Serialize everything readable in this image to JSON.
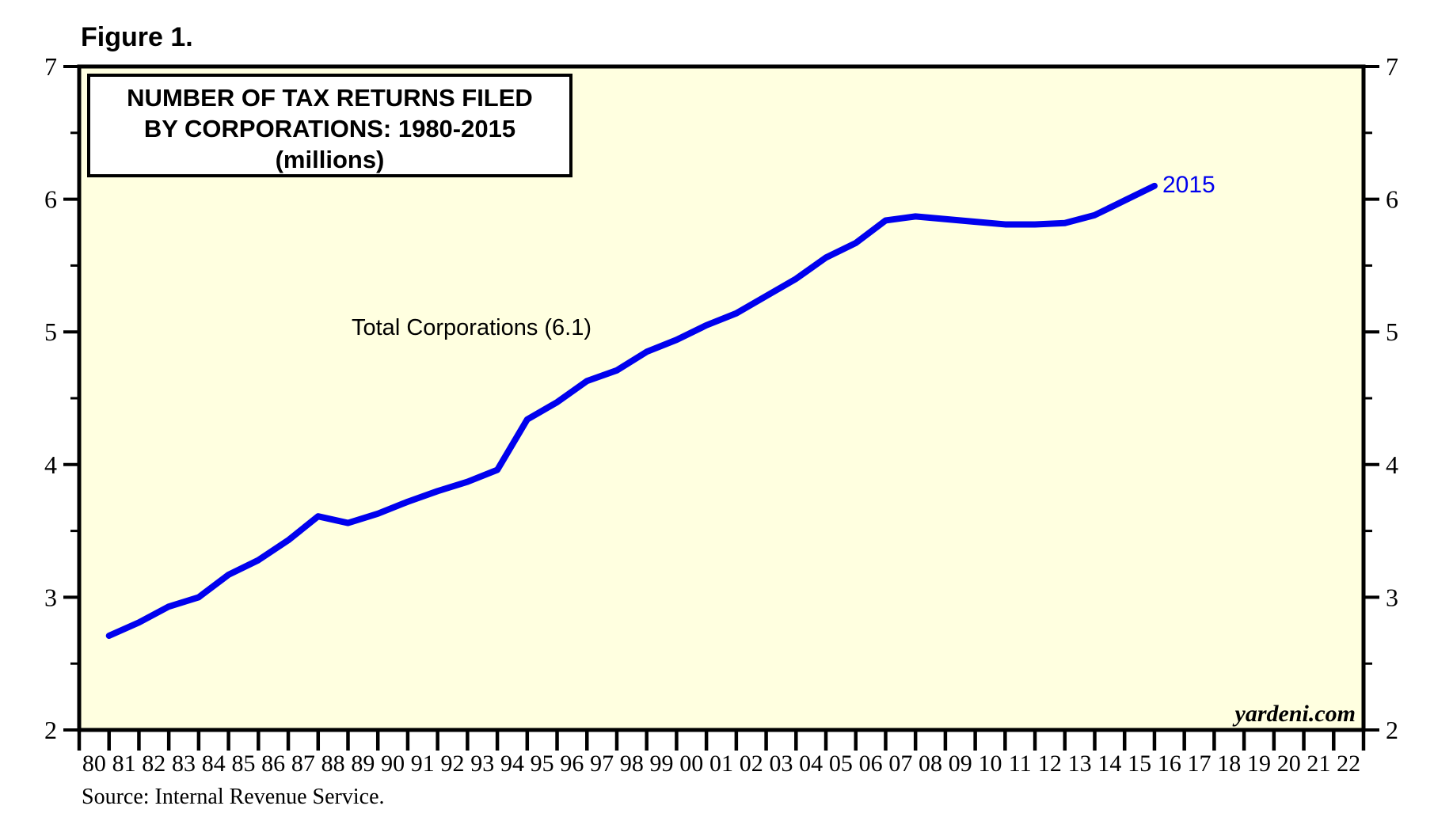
{
  "figure_label": "Figure 1.",
  "source_note": "Source: Internal Revenue Service.",
  "watermark": "yardeni.com",
  "chart_data": {
    "type": "line",
    "title": "NUMBER OF TAX RETURNS FILED BY CORPORATIONS: 1980-2015 (millions)",
    "title_box_lines": [
      "NUMBER OF TAX RETURNS FILED",
      "BY CORPORATIONS: 1980-2015",
      "(millions)"
    ],
    "series_annotation": "Total Corporations (6.1)",
    "end_label": "2015",
    "legend_position": "none",
    "grid": false,
    "ylim": [
      2,
      7
    ],
    "y_major_ticks": [
      2,
      3,
      4,
      5,
      6,
      7
    ],
    "y_minor_ticks": [
      2.5,
      3.5,
      4.5,
      5.5,
      6.5
    ],
    "x_tick_labels": [
      "80",
      "81",
      "82",
      "83",
      "84",
      "85",
      "86",
      "87",
      "88",
      "89",
      "90",
      "91",
      "92",
      "93",
      "94",
      "95",
      "96",
      "97",
      "98",
      "99",
      "00",
      "01",
      "02",
      "03",
      "04",
      "05",
      "06",
      "07",
      "08",
      "09",
      "10",
      "11",
      "12",
      "13",
      "14",
      "15",
      "16",
      "17",
      "18",
      "19",
      "20",
      "21",
      "22"
    ],
    "series": [
      {
        "name": "Total Corporations",
        "x": [
          1980,
          1981,
          1982,
          1983,
          1984,
          1985,
          1986,
          1987,
          1988,
          1989,
          1990,
          1991,
          1992,
          1993,
          1994,
          1995,
          1996,
          1997,
          1998,
          1999,
          2000,
          2001,
          2002,
          2003,
          2004,
          2005,
          2006,
          2007,
          2008,
          2009,
          2010,
          2011,
          2012,
          2013,
          2014,
          2015
        ],
        "values": [
          2.71,
          2.81,
          2.93,
          3.0,
          3.17,
          3.28,
          3.43,
          3.61,
          3.56,
          3.63,
          3.72,
          3.8,
          3.87,
          3.96,
          4.34,
          4.47,
          4.63,
          4.71,
          4.85,
          4.94,
          5.05,
          5.14,
          5.27,
          5.4,
          5.56,
          5.67,
          5.84,
          5.87,
          5.85,
          5.83,
          5.81,
          5.81,
          5.82,
          5.88,
          5.99,
          6.1
        ]
      }
    ],
    "end_value": 6.1,
    "line_color": "#0000EE",
    "plot_bg_color": "#FFFFE0",
    "axis_color": "#000000"
  }
}
